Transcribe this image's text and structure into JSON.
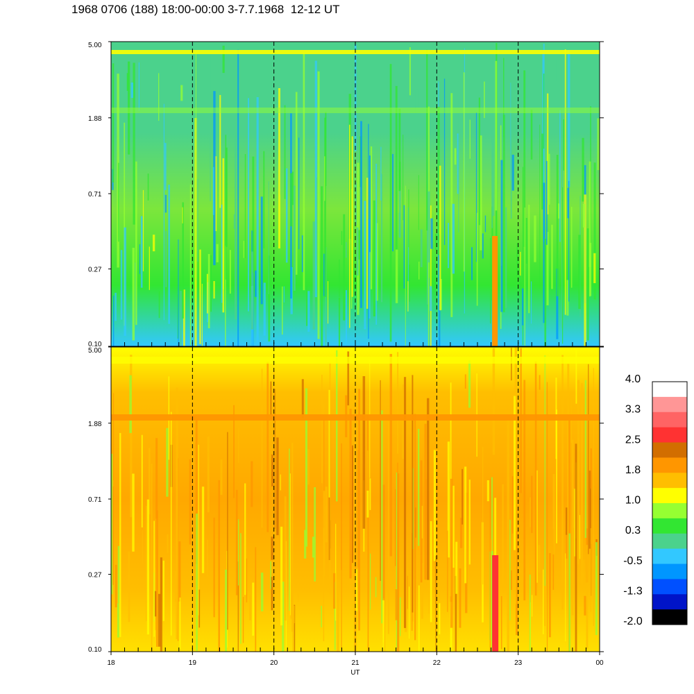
{
  "title": "1968 0706 (188) 18:00-00:00 3-7.7.1968  12-12 UT",
  "chart_data": [
    {
      "type": "heatmap",
      "panel": "top",
      "y_ticks": [
        "5.00",
        "1.88",
        "0.71",
        "0.27",
        "0.10"
      ],
      "y_scale": "log",
      "ylim": [
        0.1,
        5.0
      ],
      "x_range_hours": [
        18,
        24
      ],
      "dashed_gridlines_hours": [
        19,
        20,
        21,
        22,
        23
      ],
      "dominant_levels": [
        "green",
        "cyan",
        "blue",
        "yellow"
      ]
    },
    {
      "type": "heatmap",
      "panel": "bottom",
      "y_ticks": [
        "5.00",
        "1.88",
        "0.71",
        "0.27",
        "0.10"
      ],
      "y_scale": "log",
      "ylim": [
        0.1,
        5.0
      ],
      "x_range_hours": [
        18,
        24
      ],
      "x_ticks": [
        "18",
        "19",
        "20",
        "21",
        "22",
        "23",
        "00"
      ],
      "xlabel": "UT",
      "dashed_gridlines_hours": [
        19,
        20,
        21,
        22,
        23
      ],
      "dominant_levels": [
        "yellow",
        "orange",
        "dark-orange",
        "red"
      ]
    }
  ],
  "colorbar": {
    "labels": [
      "4.0",
      "3.3",
      "2.5",
      "1.8",
      "1.0",
      "0.3",
      "-0.5",
      "-1.3",
      "-2.0"
    ],
    "colors": [
      "#ffffff",
      "#ff9696",
      "#ff6464",
      "#ff3232",
      "#d26e00",
      "#ff9600",
      "#ffbe00",
      "#ffff00",
      "#96ff32",
      "#32e632",
      "#4bd28c",
      "#32c8ff",
      "#0096ff",
      "#0050ff",
      "#0014c8",
      "#000000"
    ]
  }
}
